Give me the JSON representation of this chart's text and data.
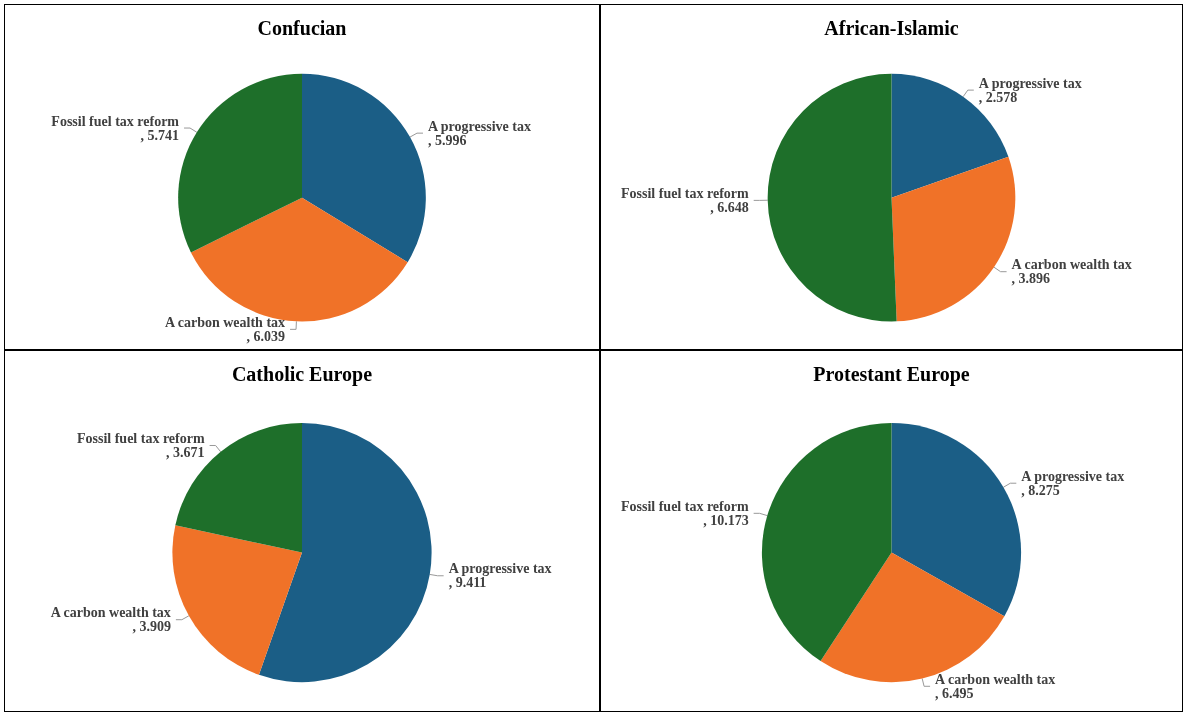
{
  "chart_data": [
    {
      "type": "pie",
      "title": "Confucian",
      "categories": [
        "A progressive tax",
        "A carbon wealth tax",
        "Fossil fuel tax reform"
      ],
      "values": [
        5.996,
        6.039,
        5.741
      ],
      "value_labels": [
        ", 5.996",
        ", 6.039",
        ", 5.741"
      ],
      "colors": [
        "#1b5e86",
        "#f07228",
        "#1e6f2a"
      ]
    },
    {
      "type": "pie",
      "title": "African-Islamic",
      "categories": [
        "A progressive tax",
        "A carbon wealth tax",
        "Fossil fuel tax reform"
      ],
      "values": [
        2.578,
        3.896,
        6.648
      ],
      "value_labels": [
        ", 2.578",
        ", 3.896",
        ", 6.648"
      ],
      "colors": [
        "#1b5e86",
        "#f07228",
        "#1e6f2a"
      ]
    },
    {
      "type": "pie",
      "title": "Catholic Europe",
      "categories": [
        "A progressive tax",
        "A carbon wealth tax",
        "Fossil fuel tax reform"
      ],
      "values": [
        9.411,
        3.909,
        3.671
      ],
      "value_labels": [
        ", 9.411",
        ", 3.909",
        ", 3.671"
      ],
      "colors": [
        "#1b5e86",
        "#f07228",
        "#1e6f2a"
      ]
    },
    {
      "type": "pie",
      "title": "Protestant Europe",
      "categories": [
        "A progressive tax",
        "A carbon wealth tax",
        "Fossil fuel tax reform"
      ],
      "values": [
        8.275,
        6.495,
        10.173
      ],
      "value_labels": [
        ", 8.275",
        ", 6.495",
        ", 10.173"
      ],
      "colors": [
        "#1b5e86",
        "#f07228",
        "#1e6f2a"
      ]
    }
  ]
}
